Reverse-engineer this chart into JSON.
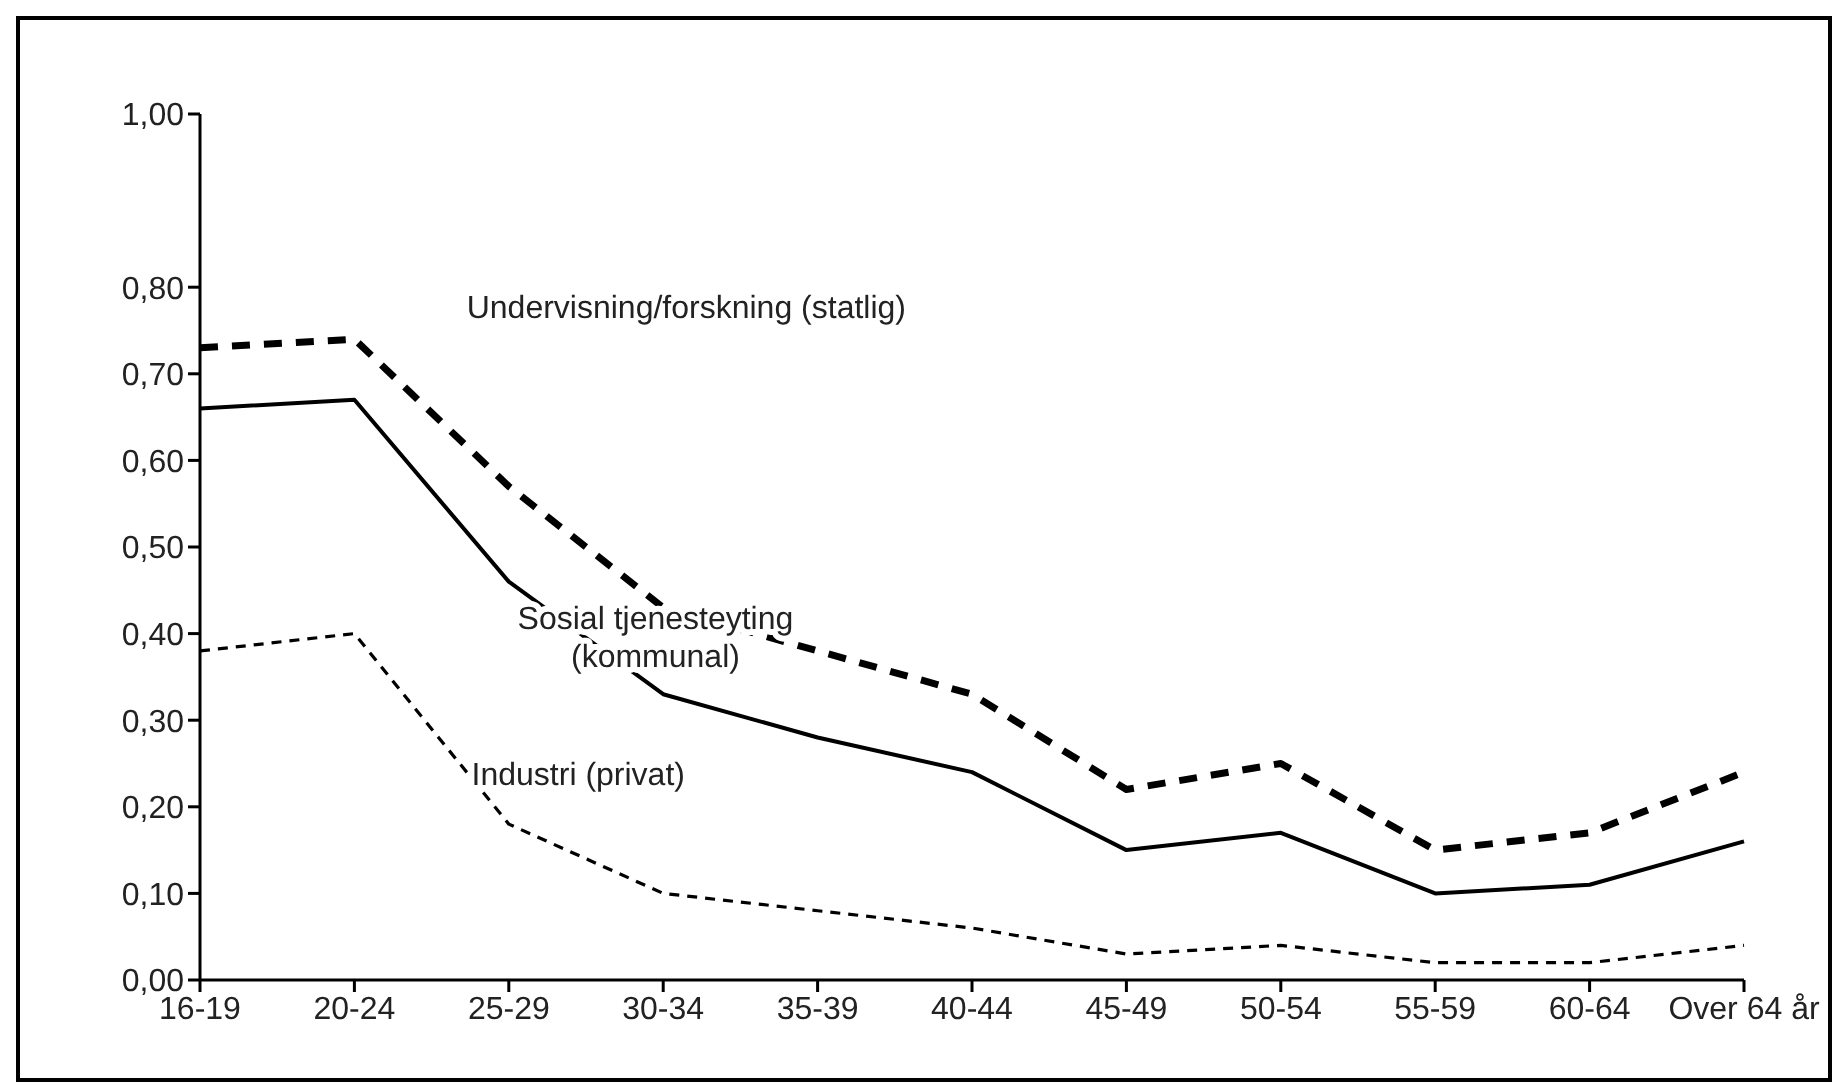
{
  "chart_data": {
    "type": "line",
    "categories": [
      "16-19",
      "20-24",
      "25-29",
      "30-34",
      "35-39",
      "40-44",
      "45-49",
      "50-54",
      "55-59",
      "60-64",
      "Over 64 år"
    ],
    "series": [
      {
        "name": "Undervisning/forskning (statlig)",
        "color": "#000000",
        "line_style": "dashed",
        "values": [
          0.73,
          0.74,
          0.57,
          0.43,
          0.38,
          0.33,
          0.22,
          0.25,
          0.15,
          0.17,
          0.24
        ]
      },
      {
        "name": "Sosial tjenesteyting (kommunal)",
        "color": "#000000",
        "line_style": "solid",
        "values": [
          0.66,
          0.67,
          0.46,
          0.33,
          0.28,
          0.24,
          0.15,
          0.17,
          0.1,
          0.11,
          0.16
        ]
      },
      {
        "name": "Industri (privat)",
        "color": "#000000",
        "line_style": "dashed",
        "values": [
          0.38,
          0.4,
          0.18,
          0.1,
          0.08,
          0.06,
          0.03,
          0.04,
          0.02,
          0.02,
          0.04
        ]
      }
    ],
    "ylim": [
      0,
      1
    ],
    "yticks": [
      {
        "value": 0,
        "label": "0,00"
      },
      {
        "value": 0.1,
        "label": "0,10"
      },
      {
        "value": 0.2,
        "label": "0,20"
      },
      {
        "value": 0.3,
        "label": "0,30"
      },
      {
        "value": 0.4,
        "label": "0,40"
      },
      {
        "value": 0.5,
        "label": "0,50"
      },
      {
        "value": 0.6,
        "label": "0,60"
      },
      {
        "value": 0.7,
        "label": "0,70"
      },
      {
        "value": 0.8,
        "label": "0,80"
      },
      {
        "value": 1,
        "label": "1,00"
      }
    ],
    "grid": false,
    "legend": false,
    "marker": "none"
  }
}
